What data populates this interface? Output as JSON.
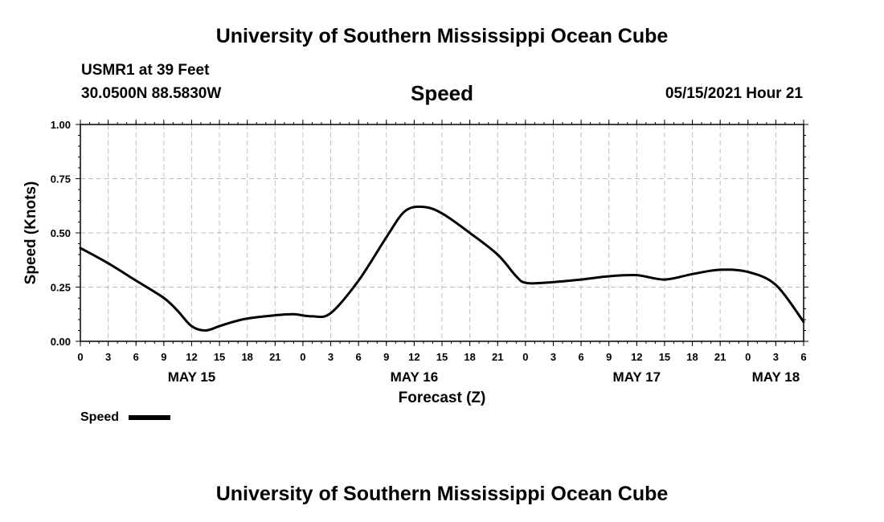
{
  "header": {
    "title": "University of Southern Mississippi Ocean Cube",
    "station": "USMR1 at 39 Feet",
    "coordinates": "30.0500N  88.5830W",
    "chart_name": "Speed",
    "datetime": "05/15/2021 Hour 21"
  },
  "footer": {
    "title": "University of Southern Mississippi Ocean Cube"
  },
  "chart_data": {
    "type": "line",
    "title": "Speed",
    "xlabel": "Forecast (Z)",
    "ylabel": "Speed (Knots)",
    "ylim": [
      0,
      1
    ],
    "yticks": [
      "0.00",
      "0.25",
      "0.50",
      "0.75",
      "1.00"
    ],
    "xlim_hours": [
      0,
      78
    ],
    "x_tick_labels": [
      "0",
      "3",
      "6",
      "9",
      "12",
      "15",
      "18",
      "21",
      "0",
      "3",
      "6",
      "9",
      "12",
      "15",
      "18",
      "21",
      "0",
      "3",
      "6",
      "9",
      "12",
      "15",
      "18",
      "21",
      "0",
      "3",
      "6"
    ],
    "date_labels": [
      {
        "label": "MAY 15",
        "hour": 12
      },
      {
        "label": "MAY 16",
        "hour": 36
      },
      {
        "label": "MAY 17",
        "hour": 60
      },
      {
        "label": "MAY 18",
        "hour": 75
      }
    ],
    "grid": true,
    "series": [
      {
        "name": "Speed",
        "color": "#000000",
        "x_hours": [
          0,
          3,
          6,
          9,
          10.5,
          12,
          13.5,
          15,
          16.5,
          18,
          21,
          23,
          25,
          27,
          30,
          33,
          35,
          37,
          39,
          42,
          45,
          47,
          48,
          50,
          54,
          57,
          60,
          63,
          66,
          69,
          72,
          75,
          78
        ],
        "values": [
          0.43,
          0.36,
          0.28,
          0.2,
          0.14,
          0.07,
          0.05,
          0.07,
          0.09,
          0.105,
          0.12,
          0.125,
          0.115,
          0.13,
          0.28,
          0.48,
          0.6,
          0.62,
          0.59,
          0.5,
          0.4,
          0.3,
          0.27,
          0.27,
          0.285,
          0.3,
          0.305,
          0.285,
          0.31,
          0.33,
          0.32,
          0.26,
          0.09
        ]
      }
    ]
  },
  "legend": {
    "label": "Speed",
    "color": "#000000"
  }
}
